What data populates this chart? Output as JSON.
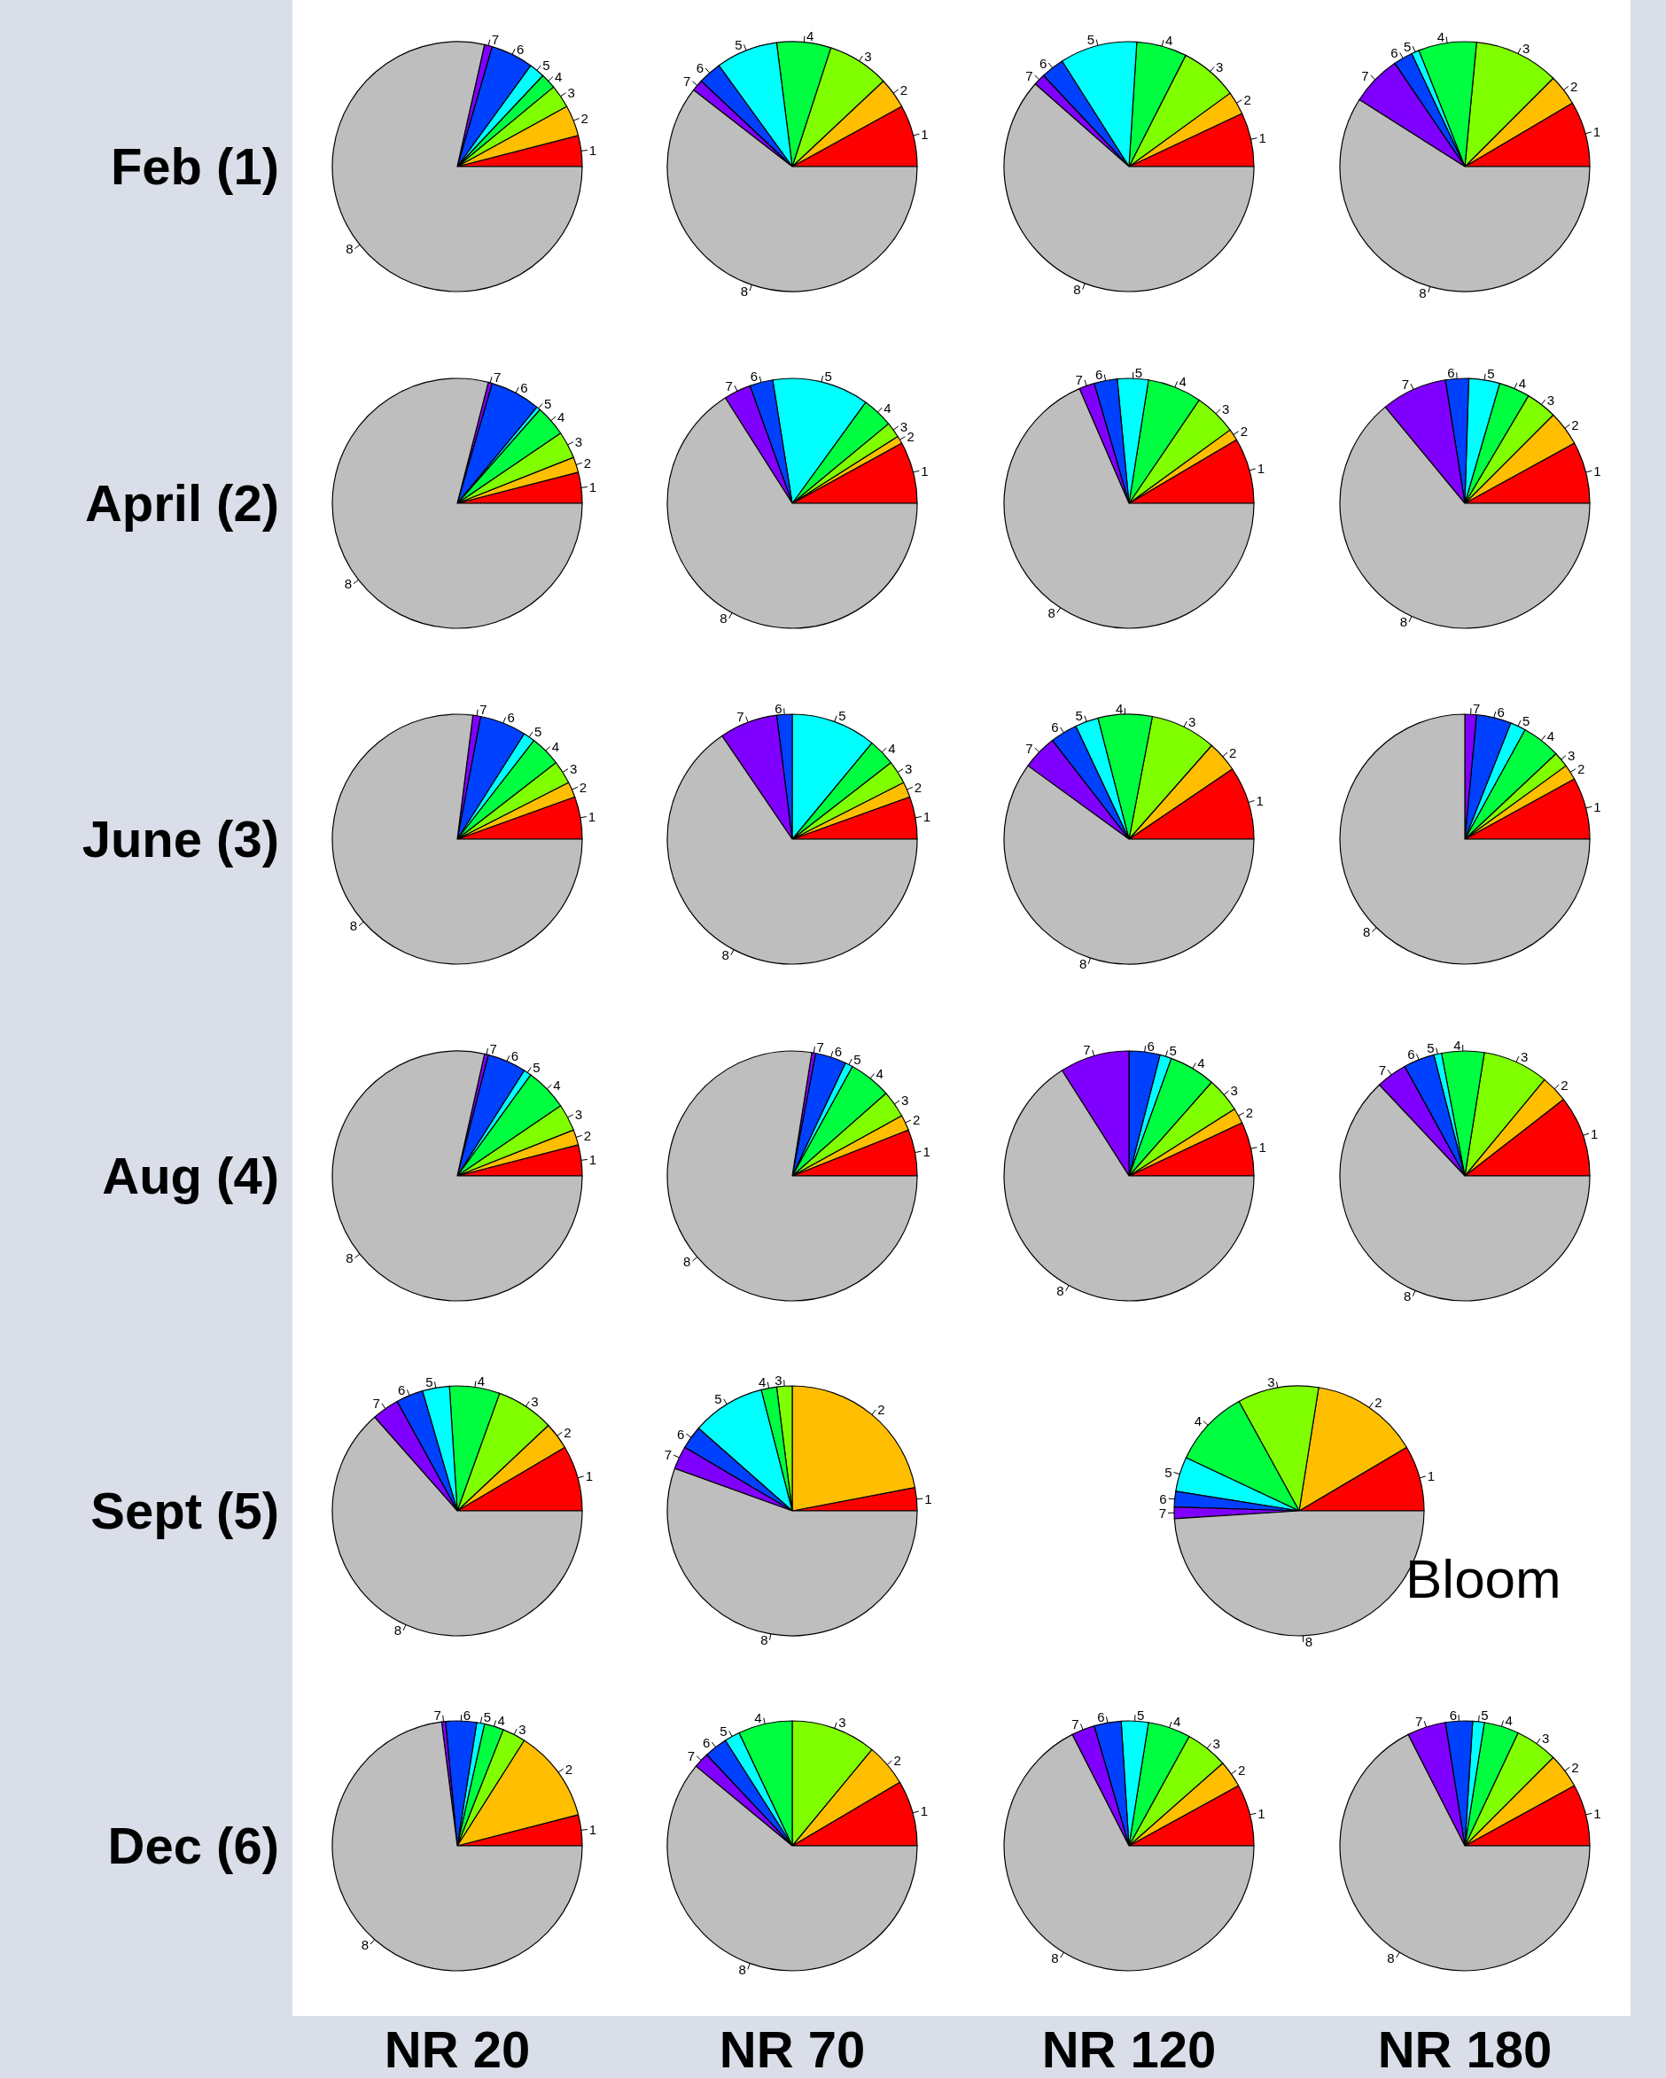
{
  "chart_data": [
    {
      "type": "pie",
      "ylabel": "Feb (1)",
      "categories": [
        "1",
        "2",
        "3",
        "4",
        "5",
        "6",
        "7",
        "8"
      ],
      "values": [
        4,
        4,
        3,
        2,
        2,
        5.5,
        1,
        78.5
      ],
      "colors": [
        "#ff0000",
        "#ffbf00",
        "#80ff00",
        "#00ff40",
        "#00ffff",
        "#0040ff",
        "#8000ff",
        "#bebebe"
      ]
    },
    {
      "type": "pie",
      "categories": [
        "1",
        "2",
        "3",
        "4",
        "5",
        "6",
        "7",
        "8"
      ],
      "values": [
        8,
        4,
        8,
        7,
        8,
        3,
        1.5,
        60.5
      ],
      "colors": [
        "#ff0000",
        "#ffbf00",
        "#80ff00",
        "#00ff40",
        "#00ffff",
        "#0040ff",
        "#8000ff",
        "#bebebe"
      ]
    },
    {
      "type": "pie",
      "categories": [
        "1",
        "2",
        "3",
        "4",
        "5",
        "6",
        "7",
        "8"
      ],
      "values": [
        7,
        3,
        7.5,
        6.5,
        10,
        3,
        1.5,
        61.5
      ],
      "colors": [
        "#ff0000",
        "#ffbf00",
        "#80ff00",
        "#00ff40",
        "#00ffff",
        "#0040ff",
        "#8000ff",
        "#bebebe"
      ]
    },
    {
      "type": "pie",
      "categories": [
        "1",
        "2",
        "3",
        "4",
        "5",
        "6",
        "7",
        "8"
      ],
      "values": [
        8.5,
        4,
        11,
        7.5,
        1,
        2.5,
        6.5,
        59
      ],
      "colors": [
        "#ff0000",
        "#ffbf00",
        "#80ff00",
        "#00ff40",
        "#00ffff",
        "#0040ff",
        "#8000ff",
        "#bebebe"
      ]
    },
    {
      "type": "pie",
      "ylabel": "April (2)",
      "categories": [
        "1",
        "2",
        "3",
        "4",
        "5",
        "6",
        "7",
        "8"
      ],
      "values": [
        4,
        2,
        3.5,
        4,
        0.5,
        6.5,
        0.5,
        79
      ],
      "colors": [
        "#ff0000",
        "#ffbf00",
        "#80ff00",
        "#00ff40",
        "#00ffff",
        "#0040ff",
        "#8000ff",
        "#bebebe"
      ]
    },
    {
      "type": "pie",
      "categories": [
        "1",
        "2",
        "3",
        "4",
        "5",
        "6",
        "7",
        "8"
      ],
      "values": [
        8,
        1,
        2,
        4,
        12.5,
        3,
        3.5,
        66
      ],
      "colors": [
        "#ff0000",
        "#ffbf00",
        "#80ff00",
        "#00ff40",
        "#00ffff",
        "#0040ff",
        "#8000ff",
        "#bebebe"
      ]
    },
    {
      "type": "pie",
      "categories": [
        "1",
        "2",
        "3",
        "4",
        "5",
        "6",
        "7",
        "8"
      ],
      "values": [
        8.5,
        1.5,
        5.5,
        7,
        4,
        3,
        2,
        68.5
      ],
      "colors": [
        "#ff0000",
        "#ffbf00",
        "#80ff00",
        "#00ff40",
        "#00ffff",
        "#0040ff",
        "#8000ff",
        "#bebebe"
      ]
    },
    {
      "type": "pie",
      "categories": [
        "1",
        "2",
        "3",
        "4",
        "5",
        "6",
        "7",
        "8"
      ],
      "values": [
        8,
        4.5,
        4,
        4,
        4,
        3,
        8.5,
        64
      ],
      "colors": [
        "#ff0000",
        "#ffbf00",
        "#80ff00",
        "#00ff40",
        "#00ffff",
        "#0040ff",
        "#8000ff",
        "#bebebe"
      ]
    },
    {
      "type": "pie",
      "ylabel": "June (3)",
      "categories": [
        "1",
        "2",
        "3",
        "4",
        "5",
        "6",
        "7",
        "8"
      ],
      "values": [
        5.5,
        2,
        3,
        4,
        1.5,
        6,
        1,
        77
      ],
      "colors": [
        "#ff0000",
        "#ffbf00",
        "#80ff00",
        "#00ff40",
        "#00ffff",
        "#0040ff",
        "#8000ff",
        "#bebebe"
      ]
    },
    {
      "type": "pie",
      "categories": [
        "1",
        "2",
        "3",
        "4",
        "5",
        "6",
        "7",
        "8"
      ],
      "values": [
        5.5,
        2,
        3,
        3.5,
        11,
        2,
        7.5,
        65.5
      ],
      "colors": [
        "#ff0000",
        "#ffbf00",
        "#80ff00",
        "#00ff40",
        "#00ffff",
        "#0040ff",
        "#8000ff",
        "#bebebe"
      ]
    },
    {
      "type": "pie",
      "categories": [
        "1",
        "2",
        "3",
        "4",
        "5",
        "6",
        "7",
        "8"
      ],
      "values": [
        9.5,
        4,
        8.5,
        7,
        3,
        3.5,
        4.5,
        60
      ],
      "colors": [
        "#ff0000",
        "#ffbf00",
        "#80ff00",
        "#00ff40",
        "#00ffff",
        "#0040ff",
        "#8000ff",
        "#bebebe"
      ]
    },
    {
      "type": "pie",
      "categories": [
        "1",
        "2",
        "3",
        "4",
        "5",
        "6",
        "7",
        "8"
      ],
      "values": [
        8,
        2,
        2,
        5,
        2,
        4.5,
        1.5,
        75
      ],
      "colors": [
        "#ff0000",
        "#ffbf00",
        "#80ff00",
        "#00ff40",
        "#00ffff",
        "#0040ff",
        "#8000ff",
        "#bebebe"
      ]
    },
    {
      "type": "pie",
      "ylabel": "Aug (4)",
      "categories": [
        "1",
        "2",
        "3",
        "4",
        "5",
        "6",
        "7",
        "8"
      ],
      "values": [
        4,
        2,
        3.5,
        5.5,
        1,
        5,
        0.5,
        78.5
      ],
      "colors": [
        "#ff0000",
        "#ffbf00",
        "#80ff00",
        "#00ff40",
        "#00ffff",
        "#0040ff",
        "#8000ff",
        "#bebebe"
      ]
    },
    {
      "type": "pie",
      "categories": [
        "1",
        "2",
        "3",
        "4",
        "5",
        "6",
        "7",
        "8"
      ],
      "values": [
        6,
        2,
        3.5,
        5.5,
        1,
        4,
        0.5,
        77.5
      ],
      "colors": [
        "#ff0000",
        "#ffbf00",
        "#80ff00",
        "#00ff40",
        "#00ffff",
        "#0040ff",
        "#8000ff",
        "#bebebe"
      ]
    },
    {
      "type": "pie",
      "categories": [
        "1",
        "2",
        "3",
        "4",
        "5",
        "6",
        "7",
        "8"
      ],
      "values": [
        7,
        2,
        4.5,
        6,
        1.5,
        4,
        9,
        66
      ],
      "colors": [
        "#ff0000",
        "#ffbf00",
        "#80ff00",
        "#00ff40",
        "#00ffff",
        "#0040ff",
        "#8000ff",
        "#bebebe"
      ]
    },
    {
      "type": "pie",
      "categories": [
        "1",
        "2",
        "3",
        "4",
        "5",
        "6",
        "7",
        "8"
      ],
      "values": [
        10.5,
        3.5,
        8.5,
        5.5,
        1,
        4,
        4,
        63
      ],
      "colors": [
        "#ff0000",
        "#ffbf00",
        "#80ff00",
        "#00ff40",
        "#00ffff",
        "#0040ff",
        "#8000ff",
        "#bebebe"
      ]
    },
    {
      "type": "pie",
      "ylabel": "Sept (5)",
      "categories": [
        "1",
        "2",
        "3",
        "4",
        "5",
        "6",
        "7",
        "8"
      ],
      "values": [
        8.5,
        3.5,
        7.5,
        6.5,
        3.5,
        3.5,
        3.5,
        63.5
      ],
      "colors": [
        "#ff0000",
        "#ffbf00",
        "#80ff00",
        "#00ff40",
        "#00ffff",
        "#0040ff",
        "#8000ff",
        "#bebebe"
      ]
    },
    {
      "type": "pie",
      "categories": [
        "1",
        "2",
        "3",
        "4",
        "5",
        "6",
        "7",
        "8"
      ],
      "values": [
        3,
        22,
        2,
        2,
        9.5,
        3,
        3,
        55.5
      ],
      "colors": [
        "#ff0000",
        "#ffbf00",
        "#80ff00",
        "#00ff40",
        "#00ffff",
        "#0040ff",
        "#8000ff",
        "#bebebe"
      ]
    },
    {
      "type": "pie",
      "annotations": [
        "Bloom"
      ],
      "categories": [
        "1",
        "2",
        "3",
        "4",
        "5",
        "6",
        "7",
        "8"
      ],
      "values": [
        8.5,
        14,
        10.5,
        10,
        4.5,
        2,
        1.5,
        49
      ],
      "colors": [
        "#ff0000",
        "#ffbf00",
        "#80ff00",
        "#00ff40",
        "#00ffff",
        "#0040ff",
        "#8000ff",
        "#bebebe"
      ]
    },
    {
      "type": "pie",
      "ylabel": "Dec (6)",
      "xlabel": "NR 20",
      "categories": [
        "1",
        "2",
        "3",
        "4",
        "5",
        "6",
        "7",
        "8"
      ],
      "values": [
        4,
        12,
        3,
        2.5,
        1,
        4,
        0.5,
        73
      ],
      "colors": [
        "#ff0000",
        "#ffbf00",
        "#80ff00",
        "#00ff40",
        "#00ffff",
        "#0040ff",
        "#8000ff",
        "#bebebe"
      ]
    },
    {
      "type": "pie",
      "xlabel": "NR 70",
      "categories": [
        "1",
        "2",
        "3",
        "4",
        "5",
        "6",
        "7",
        "8"
      ],
      "values": [
        8.5,
        5.5,
        11,
        7,
        2,
        3,
        2,
        61
      ],
      "colors": [
        "#ff0000",
        "#ffbf00",
        "#80ff00",
        "#00ff40",
        "#00ffff",
        "#0040ff",
        "#8000ff",
        "#bebebe"
      ]
    },
    {
      "type": "pie",
      "xlabel": "NR 120",
      "categories": [
        "1",
        "2",
        "3",
        "4",
        "5",
        "6",
        "7",
        "8"
      ],
      "values": [
        8,
        3.5,
        5.5,
        5.5,
        3.5,
        3.5,
        3,
        67.5
      ],
      "colors": [
        "#ff0000",
        "#ffbf00",
        "#80ff00",
        "#00ff40",
        "#00ffff",
        "#0040ff",
        "#8000ff",
        "#bebebe"
      ]
    },
    {
      "type": "pie",
      "xlabel": "NR 180",
      "categories": [
        "1",
        "2",
        "3",
        "4",
        "5",
        "6",
        "7",
        "8"
      ],
      "values": [
        8,
        4.5,
        5.5,
        4.5,
        1.5,
        3.5,
        5,
        67.5
      ],
      "colors": [
        "#ff0000",
        "#ffbf00",
        "#80ff00",
        "#00ff40",
        "#00ffff",
        "#0040ff",
        "#8000ff",
        "#bebebe"
      ]
    }
  ]
}
